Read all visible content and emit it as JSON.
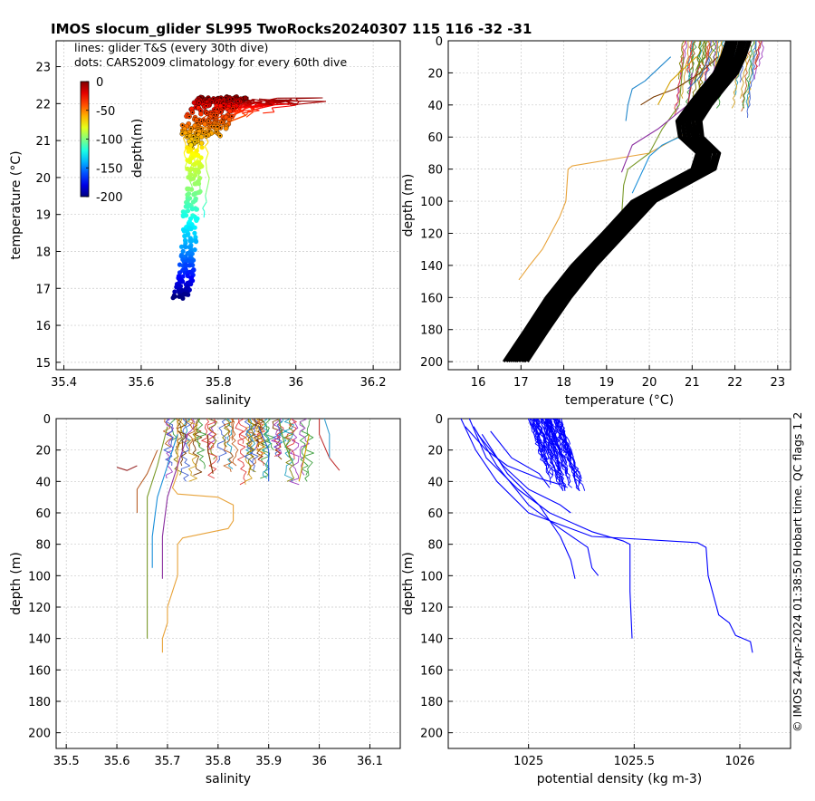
{
  "title": "IMOS slocum_glider SL995 TwoRocks20240307 115  116  -32  -31",
  "side_note": "© IMOS 24-Apr-2024 01:38:50 Hobart time. QC flags 1  2",
  "colors": {
    "density": "#0000ff",
    "climatology": "#000000",
    "grid": "#c8c8c8"
  },
  "chart_data": [
    {
      "type": "scatter",
      "id": "ts",
      "xlabel": "salinity",
      "ylabel": "temperature (°C)",
      "xlim": [
        35.38,
        36.27
      ],
      "ylim": [
        14.8,
        23.7
      ],
      "xticks": [
        35.4,
        35.6,
        35.8,
        36,
        36.2
      ],
      "xticklabels": [
        "35.4",
        "35.6",
        "35.8",
        "36",
        "36.2"
      ],
      "yticks": [
        15,
        16,
        17,
        18,
        19,
        20,
        21,
        22,
        23
      ],
      "yticklabels": [
        "15",
        "16",
        "17",
        "18",
        "19",
        "20",
        "21",
        "22",
        "23"
      ],
      "legend_text": [
        "lines: glider T&S (every 30th dive)",
        "dots: CARS2009 climatology for every 60th dive"
      ],
      "colorbar": {
        "label": "depth(m)",
        "ticks": [
          0,
          -50,
          -100,
          -150,
          -200
        ],
        "ticklabels": [
          "0",
          "-50",
          "-100",
          "-150",
          "-200"
        ],
        "range": [
          -200,
          0
        ],
        "colormap": "jet"
      },
      "climatology_profile": [
        {
          "depth": 0,
          "s": 35.79,
          "t": 22.15
        },
        {
          "depth": 10,
          "s": 35.78,
          "t": 22.1
        },
        {
          "depth": 20,
          "s": 35.77,
          "t": 22.0
        },
        {
          "depth": 30,
          "s": 35.76,
          "t": 21.85
        },
        {
          "depth": 40,
          "s": 35.75,
          "t": 21.6
        },
        {
          "depth": 50,
          "s": 35.74,
          "t": 21.35
        },
        {
          "depth": 60,
          "s": 35.73,
          "t": 21.1
        },
        {
          "depth": 75,
          "s": 35.73,
          "t": 20.6
        },
        {
          "depth": 90,
          "s": 35.73,
          "t": 20.1
        },
        {
          "depth": 100,
          "s": 35.73,
          "t": 19.6
        },
        {
          "depth": 115,
          "s": 35.72,
          "t": 19.1
        },
        {
          "depth": 130,
          "s": 35.72,
          "t": 18.6
        },
        {
          "depth": 150,
          "s": 35.71,
          "t": 17.9
        },
        {
          "depth": 170,
          "s": 35.71,
          "t": 17.4
        },
        {
          "depth": 185,
          "s": 35.7,
          "t": 17.05
        },
        {
          "depth": 200,
          "s": 35.69,
          "t": 16.75
        }
      ]
    },
    {
      "type": "line",
      "id": "temp_depth",
      "xlabel": "temperature (°C)",
      "ylabel": "depth (m)",
      "xlim": [
        15.3,
        23.3
      ],
      "ylim": [
        205,
        0
      ],
      "xticks": [
        16,
        17,
        18,
        19,
        20,
        21,
        22,
        23
      ],
      "xticklabels": [
        "16",
        "17",
        "18",
        "19",
        "20",
        "21",
        "22",
        "23"
      ],
      "yticks": [
        0,
        20,
        40,
        60,
        80,
        100,
        120,
        140,
        160,
        180,
        200
      ],
      "yticklabels": [
        "0",
        "20",
        "40",
        "60",
        "80",
        "100",
        "120",
        "140",
        "160",
        "180",
        "200"
      ],
      "climatology": [
        [
          22.1,
          0
        ],
        [
          22.0,
          10
        ],
        [
          21.8,
          20
        ],
        [
          21.5,
          30
        ],
        [
          21.2,
          40
        ],
        [
          20.95,
          50
        ],
        [
          21.0,
          60
        ],
        [
          21.4,
          70
        ],
        [
          21.3,
          80
        ],
        [
          20.6,
          90
        ],
        [
          19.9,
          100
        ],
        [
          19.2,
          120
        ],
        [
          18.5,
          140
        ],
        [
          17.9,
          160
        ],
        [
          17.4,
          180
        ],
        [
          16.9,
          200
        ]
      ],
      "profiles": [
        {
          "color": "#e8a33a",
          "points": [
            [
              21.6,
              0
            ],
            [
              21.5,
              30
            ],
            [
              21.0,
              55
            ],
            [
              20.0,
              70
            ],
            [
              18.2,
              78
            ],
            [
              18.1,
              80
            ],
            [
              18.05,
              100
            ],
            [
              17.9,
              110
            ],
            [
              17.7,
              120
            ],
            [
              17.5,
              130
            ],
            [
              17.2,
              140
            ],
            [
              16.95,
              149
            ]
          ]
        },
        {
          "color": "#7a9a2a",
          "points": [
            [
              20.8,
              10
            ],
            [
              20.7,
              40
            ],
            [
              20.3,
              55
            ],
            [
              20.0,
              70
            ],
            [
              19.5,
              80
            ],
            [
              19.4,
              90
            ],
            [
              19.35,
              110
            ],
            [
              19.3,
              124
            ]
          ]
        },
        {
          "color": "#8b2fa0",
          "points": [
            [
              21.0,
              20
            ],
            [
              20.9,
              40
            ],
            [
              20.2,
              55
            ],
            [
              19.6,
              65
            ],
            [
              19.35,
              82
            ]
          ]
        },
        {
          "color": "#1a8fd9",
          "points": [
            [
              21.3,
              25
            ],
            [
              21.1,
              45
            ],
            [
              20.7,
              60
            ],
            [
              20.3,
              65
            ],
            [
              20.0,
              72
            ],
            [
              19.6,
              95
            ]
          ]
        },
        {
          "color": "#2288cc",
          "points": [
            [
              20.5,
              10
            ],
            [
              19.9,
              25
            ],
            [
              19.6,
              30
            ],
            [
              19.5,
              40
            ],
            [
              19.45,
              50
            ]
          ]
        },
        {
          "color": "#7a3a00",
          "points": [
            [
              21.6,
              10
            ],
            [
              21.2,
              20
            ],
            [
              20.6,
              30
            ],
            [
              20.1,
              35
            ],
            [
              19.8,
              40
            ]
          ]
        },
        {
          "color": "#b83c3c",
          "points": [
            [
              21.2,
              15
            ],
            [
              21.0,
              25
            ],
            [
              20.9,
              40
            ]
          ]
        },
        {
          "color": "#d4a000",
          "points": [
            [
              21.1,
              10
            ],
            [
              20.5,
              25
            ],
            [
              20.2,
              40
            ]
          ]
        },
        {
          "color": "#3a70b0",
          "points": [
            [
              21.4,
              10
            ],
            [
              21.2,
              22
            ],
            [
              20.9,
              30
            ]
          ]
        }
      ]
    },
    {
      "type": "line",
      "id": "sal_depth",
      "xlabel": "salinity",
      "ylabel": "depth (m)",
      "xlim": [
        35.48,
        36.16
      ],
      "ylim": [
        210,
        0
      ],
      "xticks": [
        35.5,
        35.6,
        35.7,
        35.8,
        35.9,
        36,
        36.1
      ],
      "xticklabels": [
        "35.5",
        "35.6",
        "35.7",
        "35.8",
        "35.9",
        "36",
        "36.1"
      ],
      "yticks": [
        0,
        20,
        40,
        60,
        80,
        100,
        120,
        140,
        160,
        180,
        200
      ],
      "yticklabels": [
        "0",
        "20",
        "40",
        "60",
        "80",
        "100",
        "120",
        "140",
        "160",
        "180",
        "200"
      ],
      "profiles": [
        {
          "color": "#e8a33a",
          "points": [
            [
              35.72,
              0
            ],
            [
              35.72,
              35
            ],
            [
              35.71,
              44
            ],
            [
              35.72,
              48
            ],
            [
              35.8,
              50
            ],
            [
              35.83,
              55
            ],
            [
              35.83,
              65
            ],
            [
              35.82,
              70
            ],
            [
              35.73,
              76
            ],
            [
              35.72,
              80
            ],
            [
              35.72,
              100
            ],
            [
              35.71,
              110
            ],
            [
              35.7,
              120
            ],
            [
              35.7,
              130
            ],
            [
              35.69,
              140
            ],
            [
              35.69,
              149
            ]
          ]
        },
        {
          "color": "#7a9a2a",
          "points": [
            [
              35.7,
              5
            ],
            [
              35.68,
              30
            ],
            [
              35.66,
              50
            ],
            [
              35.66,
              80
            ],
            [
              35.66,
              110
            ],
            [
              35.66,
              140
            ]
          ]
        },
        {
          "color": "#8b2fa0",
          "points": [
            [
              35.74,
              10
            ],
            [
              35.72,
              30
            ],
            [
              35.7,
              50
            ],
            [
              35.69,
              75
            ],
            [
              35.69,
              102
            ]
          ]
        },
        {
          "color": "#1a8fd9",
          "points": [
            [
              35.72,
              10
            ],
            [
              35.7,
              30
            ],
            [
              35.68,
              50
            ],
            [
              35.67,
              75
            ],
            [
              35.67,
              95
            ]
          ]
        },
        {
          "color": "#b8602a",
          "points": [
            [
              35.68,
              20
            ],
            [
              35.66,
              35
            ],
            [
              35.64,
              45
            ],
            [
              35.64,
              60
            ]
          ]
        },
        {
          "color": "#c03030",
          "points": [
            [
              36.0,
              0
            ],
            [
              36.0,
              10
            ],
            [
              36.02,
              25
            ],
            [
              36.04,
              33
            ]
          ]
        },
        {
          "color": "#3aa0d0",
          "points": [
            [
              36.01,
              0
            ],
            [
              36.02,
              10
            ],
            [
              36.02,
              25
            ]
          ]
        },
        {
          "color": "#d4a000",
          "points": [
            [
              35.98,
              10
            ],
            [
              35.97,
              25
            ],
            [
              35.96,
              40
            ]
          ]
        },
        {
          "color": "#7a3a00",
          "points": [
            [
              35.78,
              10
            ],
            [
              35.78,
              20
            ],
            [
              35.79,
              35
            ]
          ]
        },
        {
          "color": "#2a5bd0",
          "points": [
            [
              35.88,
              5
            ],
            [
              35.9,
              20
            ],
            [
              35.9,
              40
            ]
          ]
        },
        {
          "color": "#9b2d2d",
          "points": [
            [
              35.64,
              30
            ],
            [
              35.62,
              33
            ],
            [
              35.6,
              31
            ]
          ]
        },
        {
          "color": "#5da02a",
          "points": [
            [
              35.92,
              0
            ],
            [
              35.93,
              15
            ],
            [
              35.95,
              30
            ]
          ]
        }
      ]
    },
    {
      "type": "line",
      "id": "dens_depth",
      "xlabel": "potential density (kg m-3)",
      "ylabel": "depth (m)",
      "xlim": [
        1024.62,
        1026.24
      ],
      "ylim": [
        210,
        0
      ],
      "xticks": [
        1025,
        1025.5,
        1026
      ],
      "xticklabels": [
        "1025",
        "1025.5",
        "1026"
      ],
      "yticks": [
        0,
        20,
        40,
        60,
        80,
        100,
        120,
        140,
        160,
        180,
        200
      ],
      "yticklabels": [
        "0",
        "20",
        "40",
        "60",
        "80",
        "100",
        "120",
        "140",
        "160",
        "180",
        "200"
      ],
      "profiles": [
        {
          "points": [
            [
              1024.68,
              0
            ],
            [
              1024.75,
              20
            ],
            [
              1024.85,
              40
            ],
            [
              1025.0,
              60
            ],
            [
              1025.3,
              75
            ],
            [
              1025.8,
              79
            ],
            [
              1025.84,
              82
            ],
            [
              1025.85,
              100
            ],
            [
              1025.88,
              115
            ],
            [
              1025.9,
              125
            ],
            [
              1025.95,
              130
            ],
            [
              1025.98,
              138
            ],
            [
              1026.05,
              142
            ],
            [
              1026.06,
              149
            ]
          ]
        },
        {
          "points": [
            [
              1024.72,
              0
            ],
            [
              1024.8,
              25
            ],
            [
              1024.95,
              45
            ],
            [
              1025.1,
              60
            ],
            [
              1025.3,
              72
            ],
            [
              1025.45,
              78
            ],
            [
              1025.48,
              80
            ],
            [
              1025.48,
              110
            ],
            [
              1025.49,
              140
            ]
          ]
        },
        {
          "points": [
            [
              1024.74,
              5
            ],
            [
              1024.85,
              30
            ],
            [
              1025.0,
              55
            ],
            [
              1025.15,
              70
            ],
            [
              1025.28,
              82
            ],
            [
              1025.3,
              95
            ],
            [
              1025.33,
              100
            ]
          ]
        },
        {
          "points": [
            [
              1024.78,
              10
            ],
            [
              1024.9,
              35
            ],
            [
              1025.05,
              55
            ],
            [
              1025.15,
              75
            ],
            [
              1025.2,
              90
            ],
            [
              1025.22,
              102
            ]
          ]
        },
        {
          "points": [
            [
              1024.76,
              10
            ],
            [
              1024.88,
              30
            ],
            [
              1025.0,
              45
            ],
            [
              1025.15,
              55
            ],
            [
              1025.2,
              60
            ]
          ]
        },
        {
          "points": [
            [
              1024.7,
              5
            ],
            [
              1024.8,
              20
            ],
            [
              1024.9,
              30
            ],
            [
              1025.05,
              38
            ],
            [
              1025.15,
              42
            ]
          ]
        },
        {
          "points": [
            [
              1024.82,
              8
            ],
            [
              1024.92,
              25
            ],
            [
              1025.05,
              35
            ],
            [
              1025.1,
              44
            ]
          ]
        }
      ]
    }
  ]
}
